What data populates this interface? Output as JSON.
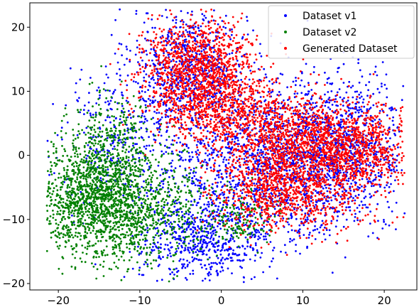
{
  "chart_data": {
    "type": "scatter",
    "title": "",
    "xlabel": "",
    "ylabel": "",
    "xlim": [
      -23.5,
      24.0
    ],
    "ylim": [
      -21.0,
      23.8
    ],
    "xticks": [
      -20,
      -10,
      0,
      10,
      20
    ],
    "yticks": [
      -20,
      -10,
      0,
      10,
      20
    ],
    "xtick_labels": [
      "−20",
      "−10",
      "0",
      "10",
      "20"
    ],
    "ytick_labels": [
      "−20",
      "−10",
      "0",
      "10",
      "20"
    ],
    "grid": false,
    "legend": "top-right",
    "series": [
      {
        "name": "Dataset v1",
        "color": "#0000ff",
        "clusters": [
          {
            "cx": -4,
            "cy": 14,
            "sx": 3.5,
            "sy": 4.5,
            "n": 700
          },
          {
            "cx": -2,
            "cy": -13,
            "sx": 4,
            "sy": 3.5,
            "n": 650
          },
          {
            "cx": 10,
            "cy": -3,
            "sx": 6.5,
            "sy": 5,
            "n": 1150
          },
          {
            "cx": 3,
            "cy": 3,
            "sx": 6,
            "sy": 6,
            "n": 700
          },
          {
            "cx": 16,
            "cy": 4,
            "sx": 3.5,
            "sy": 4,
            "n": 450
          },
          {
            "cx": -12,
            "cy": 3,
            "sx": 4,
            "sy": 5,
            "n": 300
          }
        ]
      },
      {
        "name": "Dataset v2",
        "color": "#008000",
        "clusters": [
          {
            "cx": -15.5,
            "cy": -7,
            "sx": 3.2,
            "sy": 4.5,
            "n": 1400
          },
          {
            "cx": -9,
            "cy": -9,
            "sx": 4,
            "sy": 4,
            "n": 550
          },
          {
            "cx": -13,
            "cy": 2,
            "sx": 3,
            "sy": 4,
            "n": 300
          },
          {
            "cx": 2,
            "cy": -10,
            "sx": 2.5,
            "sy": 2,
            "n": 150
          }
        ]
      },
      {
        "name": "Generated Dataset",
        "color": "#ff0000",
        "clusters": [
          {
            "cx": -3,
            "cy": 13,
            "sx": 3.5,
            "sy": 4,
            "n": 1300
          },
          {
            "cx": 2,
            "cy": 6,
            "sx": 4,
            "sy": 3.5,
            "n": 550
          },
          {
            "cx": 11,
            "cy": 2,
            "sx": 5.5,
            "sy": 3.5,
            "n": 1350
          },
          {
            "cx": 8,
            "cy": -6,
            "sx": 4.5,
            "sy": 3,
            "n": 850
          },
          {
            "cx": 17,
            "cy": 0,
            "sx": 3,
            "sy": 3,
            "n": 350
          }
        ]
      }
    ]
  }
}
